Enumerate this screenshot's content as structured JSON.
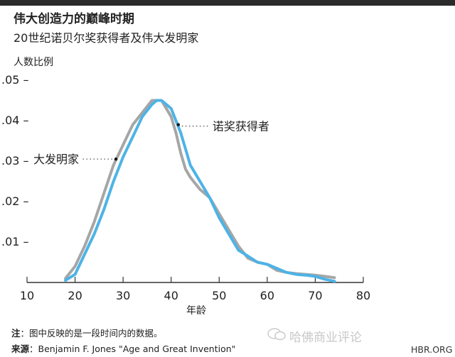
{
  "chart_data": {
    "type": "line",
    "title": "伟大创造力的巅峰时期",
    "subtitle": "20世纪诺贝尔奖获得者及伟大发明家",
    "ylabel": "人数比例",
    "xlabel": "年龄",
    "xlim": [
      10,
      80
    ],
    "ylim": [
      0,
      0.05
    ],
    "xticks": [
      10,
      20,
      30,
      40,
      50,
      60,
      70,
      80
    ],
    "xtick_labels": [
      "10",
      "20",
      "30",
      "40",
      "50",
      "60",
      "70",
      "80"
    ],
    "yticks": [
      0.01,
      0.02,
      0.03,
      0.04,
      0.05
    ],
    "ytick_labels": [
      ".01 –",
      ".02 –",
      ".03 –",
      ".04 –",
      ".05 –"
    ],
    "grid": false,
    "series": [
      {
        "name": "大发明家",
        "color": "#a6a6a6",
        "x": [
          18,
          20,
          22,
          24,
          26,
          28,
          30,
          32,
          34,
          36,
          38,
          40,
          41,
          42,
          43,
          44,
          46,
          48,
          50,
          52,
          54,
          56,
          58,
          60,
          62,
          64,
          66,
          68,
          70,
          72,
          74
        ],
        "y": [
          0.001,
          0.004,
          0.009,
          0.015,
          0.022,
          0.029,
          0.034,
          0.039,
          0.042,
          0.045,
          0.045,
          0.041,
          0.037,
          0.032,
          0.028,
          0.026,
          0.023,
          0.021,
          0.017,
          0.013,
          0.009,
          0.006,
          0.005,
          0.0045,
          0.003,
          0.0025,
          0.0022,
          0.002,
          0.0018,
          0.0015,
          0.0012
        ]
      },
      {
        "name": "诺奖获得者",
        "color": "#4db3e6",
        "x": [
          18,
          20,
          22,
          24,
          26,
          28,
          30,
          32,
          34,
          36,
          37,
          38,
          40,
          41,
          42,
          43,
          44,
          46,
          48,
          50,
          52,
          54,
          56,
          58,
          60,
          62,
          64,
          66,
          68,
          70,
          72,
          74
        ],
        "y": [
          0.0005,
          0.002,
          0.007,
          0.012,
          0.018,
          0.025,
          0.031,
          0.036,
          0.041,
          0.044,
          0.045,
          0.045,
          0.043,
          0.04,
          0.037,
          0.033,
          0.029,
          0.025,
          0.021,
          0.016,
          0.012,
          0.008,
          0.0065,
          0.005,
          0.0045,
          0.0035,
          0.0025,
          0.002,
          0.0018,
          0.0015,
          0.0008,
          0.0003
        ]
      }
    ],
    "annotations": [
      {
        "text": "诺奖获得者",
        "series": "诺奖获得者",
        "x": 41.5,
        "y": 0.039
      },
      {
        "text": "大发明家",
        "series": "大发明家",
        "x": 28.5,
        "y": 0.0305
      }
    ]
  },
  "footer": {
    "note_label": "注",
    "note_text": "：图中反映的是一段时间内的数据。",
    "source_label": "来源",
    "source_text": "：Benjamin F. Jones \"Age and Great Invention\"",
    "watermark": "哈佛商业评论",
    "site": "HBR.ORG"
  }
}
